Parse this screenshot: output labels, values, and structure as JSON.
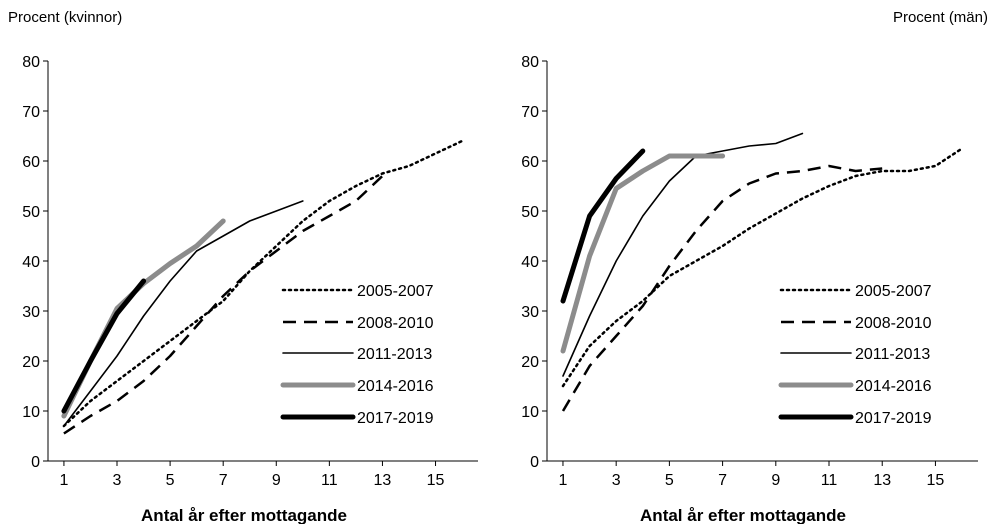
{
  "chart_data": [
    {
      "type": "line",
      "title": "Procent (kvinnor)",
      "xlabel": "Antal år efter mottagande",
      "ylabel": "",
      "ylim": [
        0,
        80
      ],
      "xlim": [
        1,
        16
      ],
      "yticks": [
        0,
        10,
        20,
        30,
        40,
        50,
        60,
        70,
        80
      ],
      "xticks": [
        1,
        3,
        5,
        7,
        9,
        11,
        13,
        15
      ],
      "grid": false,
      "legend": "bottom-right",
      "series": [
        {
          "name": "2005-2007",
          "style": "dotted",
          "color": "#000000",
          "x": [
            1,
            2,
            3,
            4,
            5,
            6,
            7,
            8,
            9,
            10,
            11,
            12,
            13,
            14,
            15,
            16
          ],
          "y": [
            7,
            12,
            16,
            20,
            24,
            28,
            32,
            38,
            43,
            48,
            52,
            55,
            57.5,
            59,
            61.5,
            64
          ]
        },
        {
          "name": "2008-2010",
          "style": "dashed",
          "color": "#000000",
          "x": [
            1,
            2,
            3,
            4,
            5,
            6,
            7,
            8,
            9,
            10,
            11,
            12,
            13
          ],
          "y": [
            5.5,
            9,
            12,
            16,
            21,
            27,
            33,
            38,
            42,
            46,
            49,
            52,
            57
          ]
        },
        {
          "name": "2011-2013",
          "style": "thin",
          "color": "#000000",
          "x": [
            1,
            2,
            3,
            4,
            5,
            6,
            7,
            8,
            9,
            10
          ],
          "y": [
            7,
            14,
            21,
            29,
            36,
            42,
            45,
            48,
            50,
            52
          ]
        },
        {
          "name": "2014-2016",
          "style": "thick-gray",
          "color": "#8c8c8c",
          "x": [
            1,
            2,
            3,
            4,
            5,
            6,
            7
          ],
          "y": [
            9,
            20,
            30.5,
            35.5,
            39.5,
            43,
            48
          ]
        },
        {
          "name": "2017-2019",
          "style": "thick-black",
          "color": "#000000",
          "x": [
            1,
            2,
            3,
            4
          ],
          "y": [
            10,
            20,
            29.5,
            36
          ]
        }
      ]
    },
    {
      "type": "line",
      "title": "Procent (män)",
      "xlabel": "Antal år efter mottagande",
      "ylabel": "",
      "ylim": [
        0,
        80
      ],
      "xlim": [
        1,
        16
      ],
      "yticks": [
        0,
        10,
        20,
        30,
        40,
        50,
        60,
        70,
        80
      ],
      "xticks": [
        1,
        3,
        5,
        7,
        9,
        11,
        13,
        15
      ],
      "grid": false,
      "legend": "bottom-right",
      "series": [
        {
          "name": "2005-2007",
          "style": "dotted",
          "color": "#000000",
          "x": [
            1,
            2,
            3,
            4,
            5,
            6,
            7,
            8,
            9,
            10,
            11,
            12,
            13,
            14,
            15,
            16
          ],
          "y": [
            15,
            23,
            28,
            32,
            37,
            40,
            43,
            46.5,
            49.5,
            52.5,
            55,
            57,
            58,
            58,
            59,
            62.5
          ]
        },
        {
          "name": "2008-2010",
          "style": "dashed",
          "color": "#000000",
          "x": [
            1,
            2,
            3,
            4,
            5,
            6,
            7,
            8,
            9,
            10,
            11,
            12,
            13
          ],
          "y": [
            10,
            19,
            25,
            31,
            39,
            46,
            52,
            55.5,
            57.5,
            58,
            59,
            58,
            58.5
          ]
        },
        {
          "name": "2011-2013",
          "style": "thin",
          "color": "#000000",
          "x": [
            1,
            2,
            3,
            4,
            5,
            6,
            7,
            8,
            9,
            10
          ],
          "y": [
            17,
            29,
            40,
            49,
            56,
            61,
            62,
            63,
            63.5,
            65.5
          ]
        },
        {
          "name": "2014-2016",
          "style": "thick-gray",
          "color": "#8c8c8c",
          "x": [
            1,
            2,
            3,
            4,
            5,
            6,
            7
          ],
          "y": [
            22,
            41,
            54.5,
            58,
            61,
            61,
            61
          ]
        },
        {
          "name": "2017-2019",
          "style": "thick-black",
          "color": "#000000",
          "x": [
            1,
            2,
            3,
            4
          ],
          "y": [
            32,
            49,
            56.5,
            62
          ]
        }
      ]
    }
  ]
}
